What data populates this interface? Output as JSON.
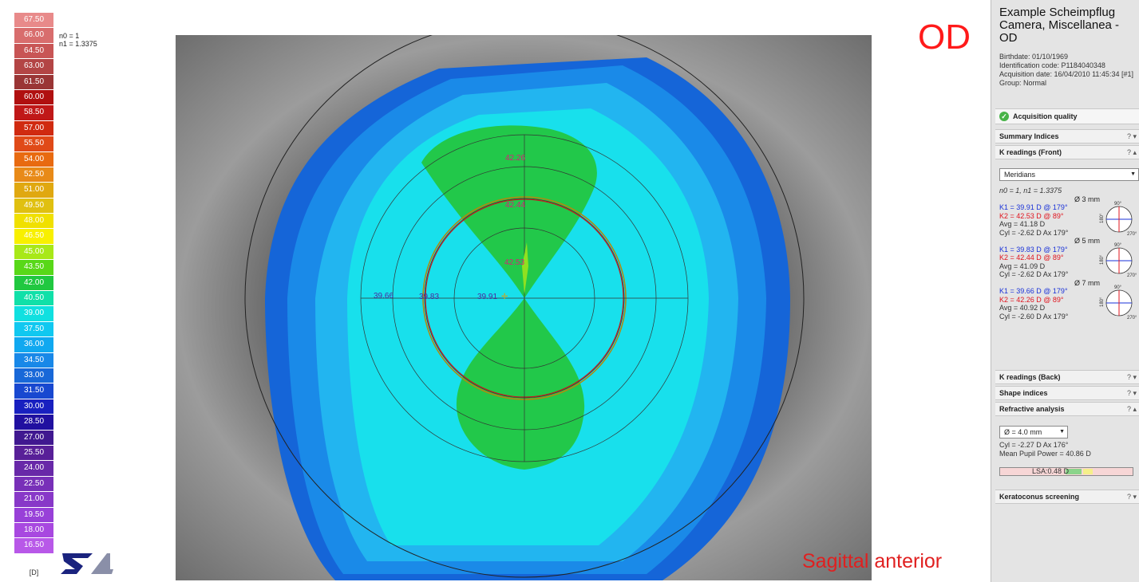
{
  "scale": {
    "unit": "[D]",
    "steps": [
      {
        "value": "67.50",
        "color": "#e88a8a"
      },
      {
        "value": "66.00",
        "color": "#d86d6d"
      },
      {
        "value": "64.50",
        "color": "#c85555"
      },
      {
        "value": "63.00",
        "color": "#b34545"
      },
      {
        "value": "61.50",
        "color": "#9a3535"
      },
      {
        "value": "60.00",
        "color": "#b01010"
      },
      {
        "value": "58.50",
        "color": "#c01818"
      },
      {
        "value": "57.00",
        "color": "#d02a10"
      },
      {
        "value": "55.50",
        "color": "#e04a18"
      },
      {
        "value": "54.00",
        "color": "#e86a10"
      },
      {
        "value": "52.50",
        "color": "#e88a18"
      },
      {
        "value": "51.00",
        "color": "#e0a810"
      },
      {
        "value": "49.50",
        "color": "#e0c010"
      },
      {
        "value": "48.00",
        "color": "#f0e000"
      },
      {
        "value": "46.50",
        "color": "#f8f000"
      },
      {
        "value": "45.00",
        "color": "#a8e818"
      },
      {
        "value": "43.50",
        "color": "#58d818"
      },
      {
        "value": "42.00",
        "color": "#20c840"
      },
      {
        "value": "40.50",
        "color": "#10e0a8"
      },
      {
        "value": "39.00",
        "color": "#10e0e0"
      },
      {
        "value": "37.50",
        "color": "#10c8f0"
      },
      {
        "value": "36.00",
        "color": "#10a8f0"
      },
      {
        "value": "34.50",
        "color": "#1888e8"
      },
      {
        "value": "33.00",
        "color": "#1868d8"
      },
      {
        "value": "31.50",
        "color": "#1848d0"
      },
      {
        "value": "30.00",
        "color": "#1820c0"
      },
      {
        "value": "28.50",
        "color": "#2010a0"
      },
      {
        "value": "27.00",
        "color": "#401890"
      },
      {
        "value": "25.50",
        "color": "#582098"
      },
      {
        "value": "24.00",
        "color": "#6828a8"
      },
      {
        "value": "22.50",
        "color": "#7830b8"
      },
      {
        "value": "21.00",
        "color": "#8838c8"
      },
      {
        "value": "19.50",
        "color": "#9840d8"
      },
      {
        "value": "18.00",
        "color": "#a848e0"
      },
      {
        "value": "16.50",
        "color": "#b858e8"
      }
    ]
  },
  "refractive_indices": {
    "n0": "n0 = 1",
    "n1": "n1 = 1.3375"
  },
  "map": {
    "eye": "OD",
    "type": "Sagittal anterior",
    "labels": {
      "k2_7mm": "42.26",
      "k2_5mm": "42.44",
      "k2_3mm": "42.53",
      "k1_7mm": "39.66",
      "k1_5mm": "39.83",
      "k1_3mm": "39.91"
    }
  },
  "patient": {
    "name": "Example Scheimpflug Camera, Miscellanea - OD",
    "birthdate": "Birthdate: 01/10/1969",
    "id": "Identification code: P1184040348",
    "acquisition": "Acquisition date: 16/04/2010 11:45:34 [#1]",
    "group": "Group: Normal"
  },
  "sections": {
    "acquisition_quality": "Acquisition quality",
    "summary": "Summary Indices",
    "k_front": "K readings (Front)",
    "k_back": "K readings (Back)",
    "shape": "Shape indices",
    "refractive": "Refractive analysis",
    "keratoconus": "Keratoconus screening",
    "help": "?",
    "collapsed": "▾",
    "expanded": "▴"
  },
  "k_front": {
    "mode": "Meridians",
    "n_text": "n0 = 1, n1 = 1.3375",
    "zones": [
      {
        "diam": "Ø 3 mm",
        "k1": "K1 = 39.91 D  @ 179°",
        "k2": "K2 = 42.53 D  @ 89°",
        "avg": "Avg = 41.18 D",
        "cyl": "Cyl = -2.62 D Ax 179°"
      },
      {
        "diam": "Ø 5 mm",
        "k1": "K1 = 39.83 D  @ 179°",
        "k2": "K2 = 42.44 D  @ 89°",
        "avg": "Avg = 41.09 D",
        "cyl": "Cyl = -2.62 D Ax 179°"
      },
      {
        "diam": "Ø 7 mm",
        "k1": "K1 = 39.66 D  @ 179°",
        "k2": "K2 = 42.26 D  @ 89°",
        "avg": "Avg = 40.92 D",
        "cyl": "Cyl = -2.60 D Ax 179°"
      }
    ],
    "compass": {
      "top": "90°",
      "left": "180°",
      "bottom": "270°"
    }
  },
  "refractive": {
    "diameter": "Ø = 4.0 mm",
    "cyl": "Cyl = -2.27 D Ax 176°",
    "mean_pupil_power": "Mean Pupil Power = 40.86 D",
    "lsa": "LSA:0.48 D"
  }
}
